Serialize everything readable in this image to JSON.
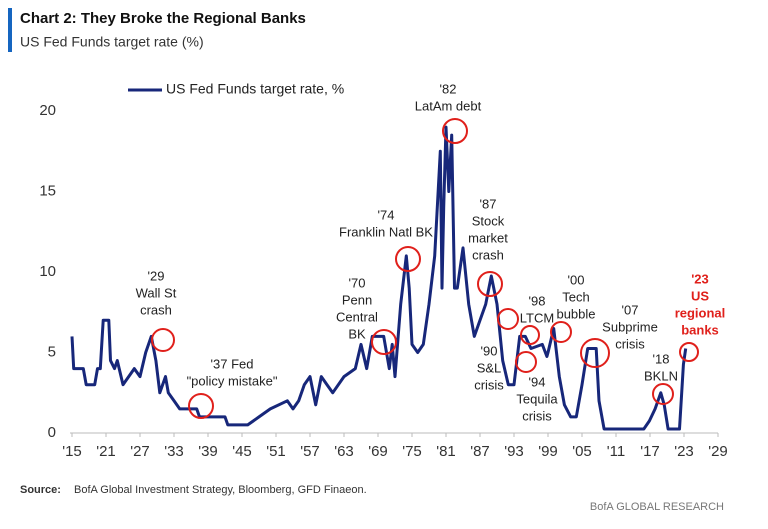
{
  "chart_data": {
    "type": "line",
    "title": "Chart 2: They Broke the Regional Banks",
    "subtitle": "US Fed Funds target rate (%)",
    "source_label": "Source:",
    "source": "BofA Global Investment Strategy, Bloomberg, GFD Finaeon.",
    "brand": "BofA GLOBAL RESEARCH",
    "xlim": [
      1915,
      2029
    ],
    "ylim": [
      0,
      20
    ],
    "yticks": [
      0,
      5,
      10,
      15,
      20
    ],
    "xticks": [
      {
        "value": 1915,
        "label": "'15"
      },
      {
        "value": 1921,
        "label": "'21"
      },
      {
        "value": 1927,
        "label": "'27"
      },
      {
        "value": 1933,
        "label": "'33"
      },
      {
        "value": 1939,
        "label": "'39"
      },
      {
        "value": 1945,
        "label": "'45"
      },
      {
        "value": 1951,
        "label": "'51"
      },
      {
        "value": 1957,
        "label": "'57"
      },
      {
        "value": 1963,
        "label": "'63"
      },
      {
        "value": 1969,
        "label": "'69"
      },
      {
        "value": 1975,
        "label": "'75"
      },
      {
        "value": 1981,
        "label": "'81"
      },
      {
        "value": 1987,
        "label": "'87"
      },
      {
        "value": 1993,
        "label": "'93"
      },
      {
        "value": 1999,
        "label": "'99"
      },
      {
        "value": 2005,
        "label": "'05"
      },
      {
        "value": 2011,
        "label": "'11"
      },
      {
        "value": 2017,
        "label": "'17"
      },
      {
        "value": 2023,
        "label": "'23"
      },
      {
        "value": 2029,
        "label": "'29"
      }
    ],
    "x": [
      1915,
      1915.3,
      1917,
      1917.5,
      1919,
      1919.5,
      1920,
      1920.5,
      1921.5,
      1921.8,
      1922.5,
      1923,
      1924,
      1925,
      1926,
      1927,
      1928,
      1929,
      1929.8,
      1930.5,
      1931.5,
      1932,
      1933,
      1934,
      1937,
      1937.5,
      1942,
      1942.5,
      1946,
      1948,
      1950,
      1953,
      1954,
      1955,
      1956,
      1957,
      1958,
      1959,
      1960,
      1961,
      1963,
      1965,
      1966,
      1967,
      1968,
      1969,
      1970,
      1971,
      1971.5,
      1972,
      1973,
      1974,
      1974.5,
      1975,
      1976,
      1977,
      1978,
      1979,
      1980,
      1980.3,
      1980.6,
      1981,
      1981.5,
      1982,
      1982.5,
      1983,
      1984,
      1985,
      1986,
      1987,
      1988,
      1989,
      1990,
      1991,
      1992,
      1993,
      1994,
      1995,
      1996,
      1998,
      1998.8,
      1999,
      2000,
      2001,
      2001.9,
      2003,
      2004,
      2005,
      2006,
      2007.5,
      2008,
      2008.9,
      2015.9,
      2016.9,
      2017.9,
      2018.9,
      2019.5,
      2020.2,
      2022.2,
      2022.6,
      2022.9,
      2023.3
    ],
    "series": [
      {
        "name": "US Fed Funds target rate, %",
        "color": "#17277a",
        "values": [
          6,
          4,
          4,
          3,
          3,
          4,
          4,
          7,
          7,
          4.5,
          4,
          4.5,
          3,
          3.5,
          4,
          3.5,
          5,
          6,
          4.5,
          2.5,
          3.5,
          2.5,
          2,
          1.5,
          1.5,
          1,
          1,
          0.5,
          0.5,
          1,
          1.5,
          2,
          1.5,
          2,
          3,
          3.5,
          1.75,
          3.5,
          3,
          2.5,
          3.5,
          4,
          5.5,
          4,
          6,
          6,
          6,
          4,
          5.5,
          3.5,
          8,
          11,
          9,
          5.5,
          5,
          5.5,
          8,
          11,
          17.5,
          9,
          14,
          19,
          15,
          18.5,
          9,
          9,
          11.5,
          8,
          6,
          7,
          8,
          9.75,
          8,
          4.5,
          3,
          3,
          6,
          6,
          5.25,
          5.5,
          4.75,
          5,
          6.5,
          3.5,
          1.75,
          1,
          1,
          3,
          5.25,
          5.25,
          2,
          0.25,
          0.25,
          0.75,
          1.5,
          2.5,
          1.75,
          0.25,
          0.25,
          2.5,
          4.25,
          5.25
        ]
      }
    ],
    "annotation_color": "#e0201b",
    "annotations": [
      {
        "text": [
          "'29",
          "Wall St",
          "crash"
        ]
      },
      {
        "text": [
          "'37 Fed",
          "\"policy mistake\""
        ]
      },
      {
        "text": [
          "'70",
          "Penn",
          "Central",
          "BK"
        ]
      },
      {
        "text": [
          "'74",
          "Franklin Natl BK"
        ]
      },
      {
        "text": [
          "'82",
          "LatAm debt"
        ]
      },
      {
        "text": [
          "'87",
          "Stock",
          "market",
          "crash"
        ]
      },
      {
        "text": [
          "'90",
          "S&L",
          "crisis"
        ]
      },
      {
        "text": [
          "'98",
          "LTCM"
        ]
      },
      {
        "text": [
          "'94",
          "Tequila",
          "crisis"
        ]
      },
      {
        "text": [
          "'00",
          "Tech",
          "bubble"
        ]
      },
      {
        "text": [
          "'07",
          "Subprime",
          "crisis"
        ]
      },
      {
        "text": [
          "'18",
          "BKLN"
        ]
      },
      {
        "text": [
          "'23",
          "US",
          "regional",
          "banks"
        ],
        "highlight": true
      }
    ]
  }
}
